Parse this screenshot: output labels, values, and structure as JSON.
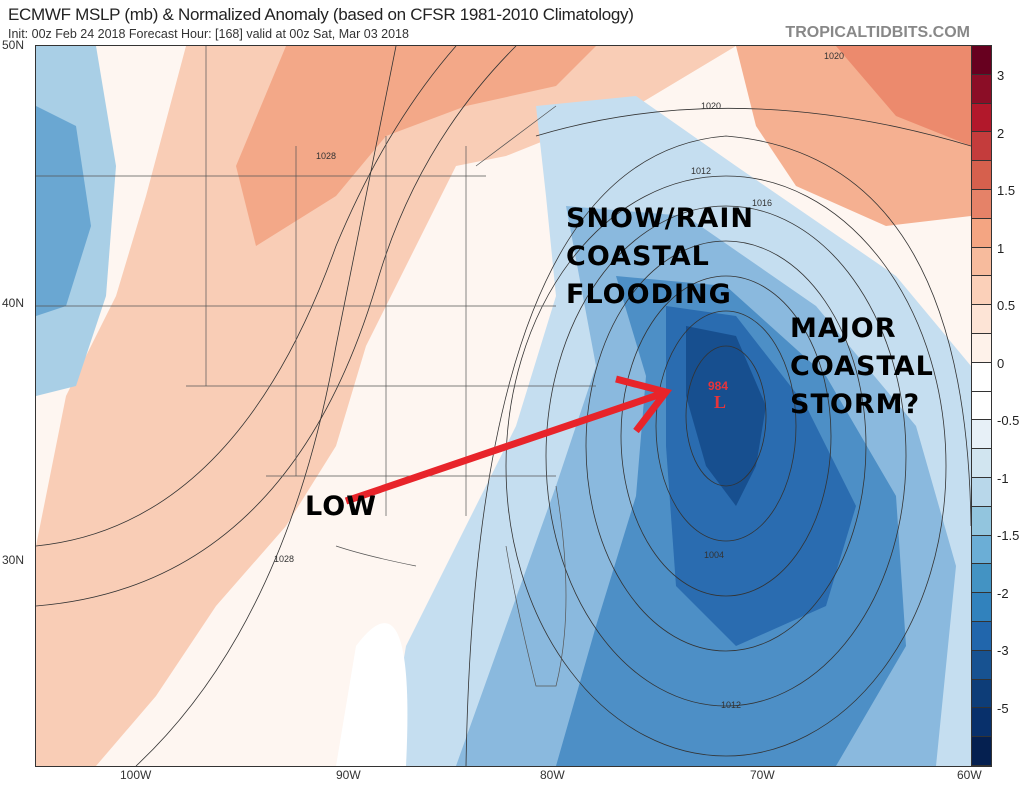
{
  "header": {
    "title": "ECMWF MSLP (mb) & Normalized Anomaly (based on CFSR 1981-2010 Climatology)",
    "subtitle": "Init: 00z Feb 24 2018   Forecast Hour: [168]   valid at 00z Sat, Mar 03 2018",
    "brand": "TROPICALTIDBITS.COM"
  },
  "axes": {
    "lat": [
      "50N",
      "40N",
      "30N"
    ],
    "lon": [
      "100W",
      "90W",
      "80W",
      "70W",
      "60W"
    ]
  },
  "colorbar": {
    "labels": [
      "3",
      "2",
      "1.5",
      "1",
      "0.5",
      "0",
      "-0.5",
      "-1",
      "-1.5",
      "-2",
      "-3",
      "-5"
    ],
    "colors": [
      "#67001f",
      "#8b0d26",
      "#b2182b",
      "#c43c3c",
      "#d6604d",
      "#e58268",
      "#f4a582",
      "#f7bb9d",
      "#fbd0b9",
      "#fde4d6",
      "#fef2ea",
      "#ffffff",
      "#ffffff",
      "#e7f0f7",
      "#d1e5f0",
      "#b8d7ea",
      "#92c5de",
      "#6baed6",
      "#4393c3",
      "#3182bd",
      "#2166ac",
      "#175291",
      "#0d3d78",
      "#08306b",
      "#052050"
    ]
  },
  "contour_labels": [
    "1028",
    "1020",
    "1028",
    "1012",
    "1016",
    "1020",
    "1004",
    "1012"
  ],
  "low": {
    "pressure": "984",
    "symbol": "L"
  },
  "annotations": {
    "left": [
      "SNOW/RAIN",
      "COASTAL",
      "FLOODING"
    ],
    "right": [
      "MAJOR",
      "COASTAL",
      "STORM?"
    ],
    "low": "LOW"
  },
  "colors": {
    "arrow": "#e8242a",
    "low": "#e8343a"
  }
}
